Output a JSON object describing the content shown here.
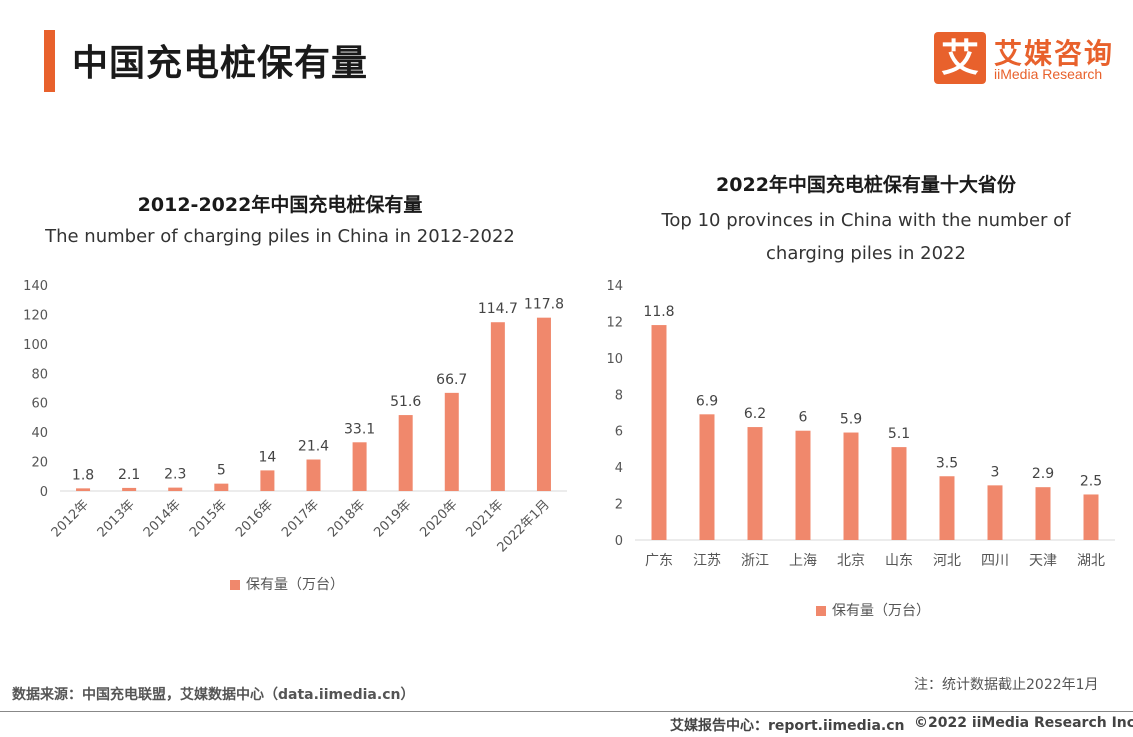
{
  "header": {
    "title": "中国充电桩保有量",
    "logo_mark": "艾",
    "logo_cn": "艾媒咨询",
    "logo_en": "iiMedia Research"
  },
  "colors": {
    "accent": "#e8612c",
    "bar": "#f0886c",
    "axis": "#d9d9d9"
  },
  "chart_data": [
    {
      "type": "bar",
      "title": "2012-2022年中国充电桩保有量",
      "subtitle": "The number of charging piles in China in 2012-2022",
      "categories": [
        "2012年",
        "2013年",
        "2014年",
        "2015年",
        "2016年",
        "2017年",
        "2018年",
        "2019年",
        "2020年",
        "2021年",
        "2022年1月"
      ],
      "series": [
        {
          "name": "保有量（万台）",
          "values": [
            1.8,
            2.1,
            2.3,
            5,
            14,
            21.4,
            33.1,
            51.6,
            66.7,
            114.7,
            117.8
          ]
        }
      ],
      "ylim": [
        0,
        140
      ],
      "yticks": [
        0,
        20,
        40,
        60,
        80,
        100,
        120,
        140
      ],
      "xlabel": "",
      "ylabel": "",
      "grid": false,
      "legend": "bottom"
    },
    {
      "type": "bar",
      "title": "2022年中国充电桩保有量十大省份",
      "subtitle": "Top 10 provinces in China with the number of charging piles in 2022",
      "categories": [
        "广东",
        "江苏",
        "浙江",
        "上海",
        "北京",
        "山东",
        "河北",
        "四川",
        "天津",
        "湖北"
      ],
      "series": [
        {
          "name": "保有量（万台）",
          "values": [
            11.8,
            6.9,
            6.2,
            6,
            5.9,
            5.1,
            3.5,
            3,
            2.9,
            2.5
          ]
        }
      ],
      "ylim": [
        0,
        14
      ],
      "yticks": [
        0,
        2,
        4,
        6,
        8,
        10,
        12,
        14
      ],
      "xlabel": "",
      "ylabel": "",
      "grid": false,
      "legend": "bottom"
    }
  ],
  "footer": {
    "source": "数据来源：中国充电联盟，艾媒数据中心（data.iimedia.cn）",
    "note": "注：统计数据截止2022年1月",
    "report": "艾媒报告中心：report.iimedia.cn",
    "copyright": "©2022  iiMedia Research  Inc"
  }
}
